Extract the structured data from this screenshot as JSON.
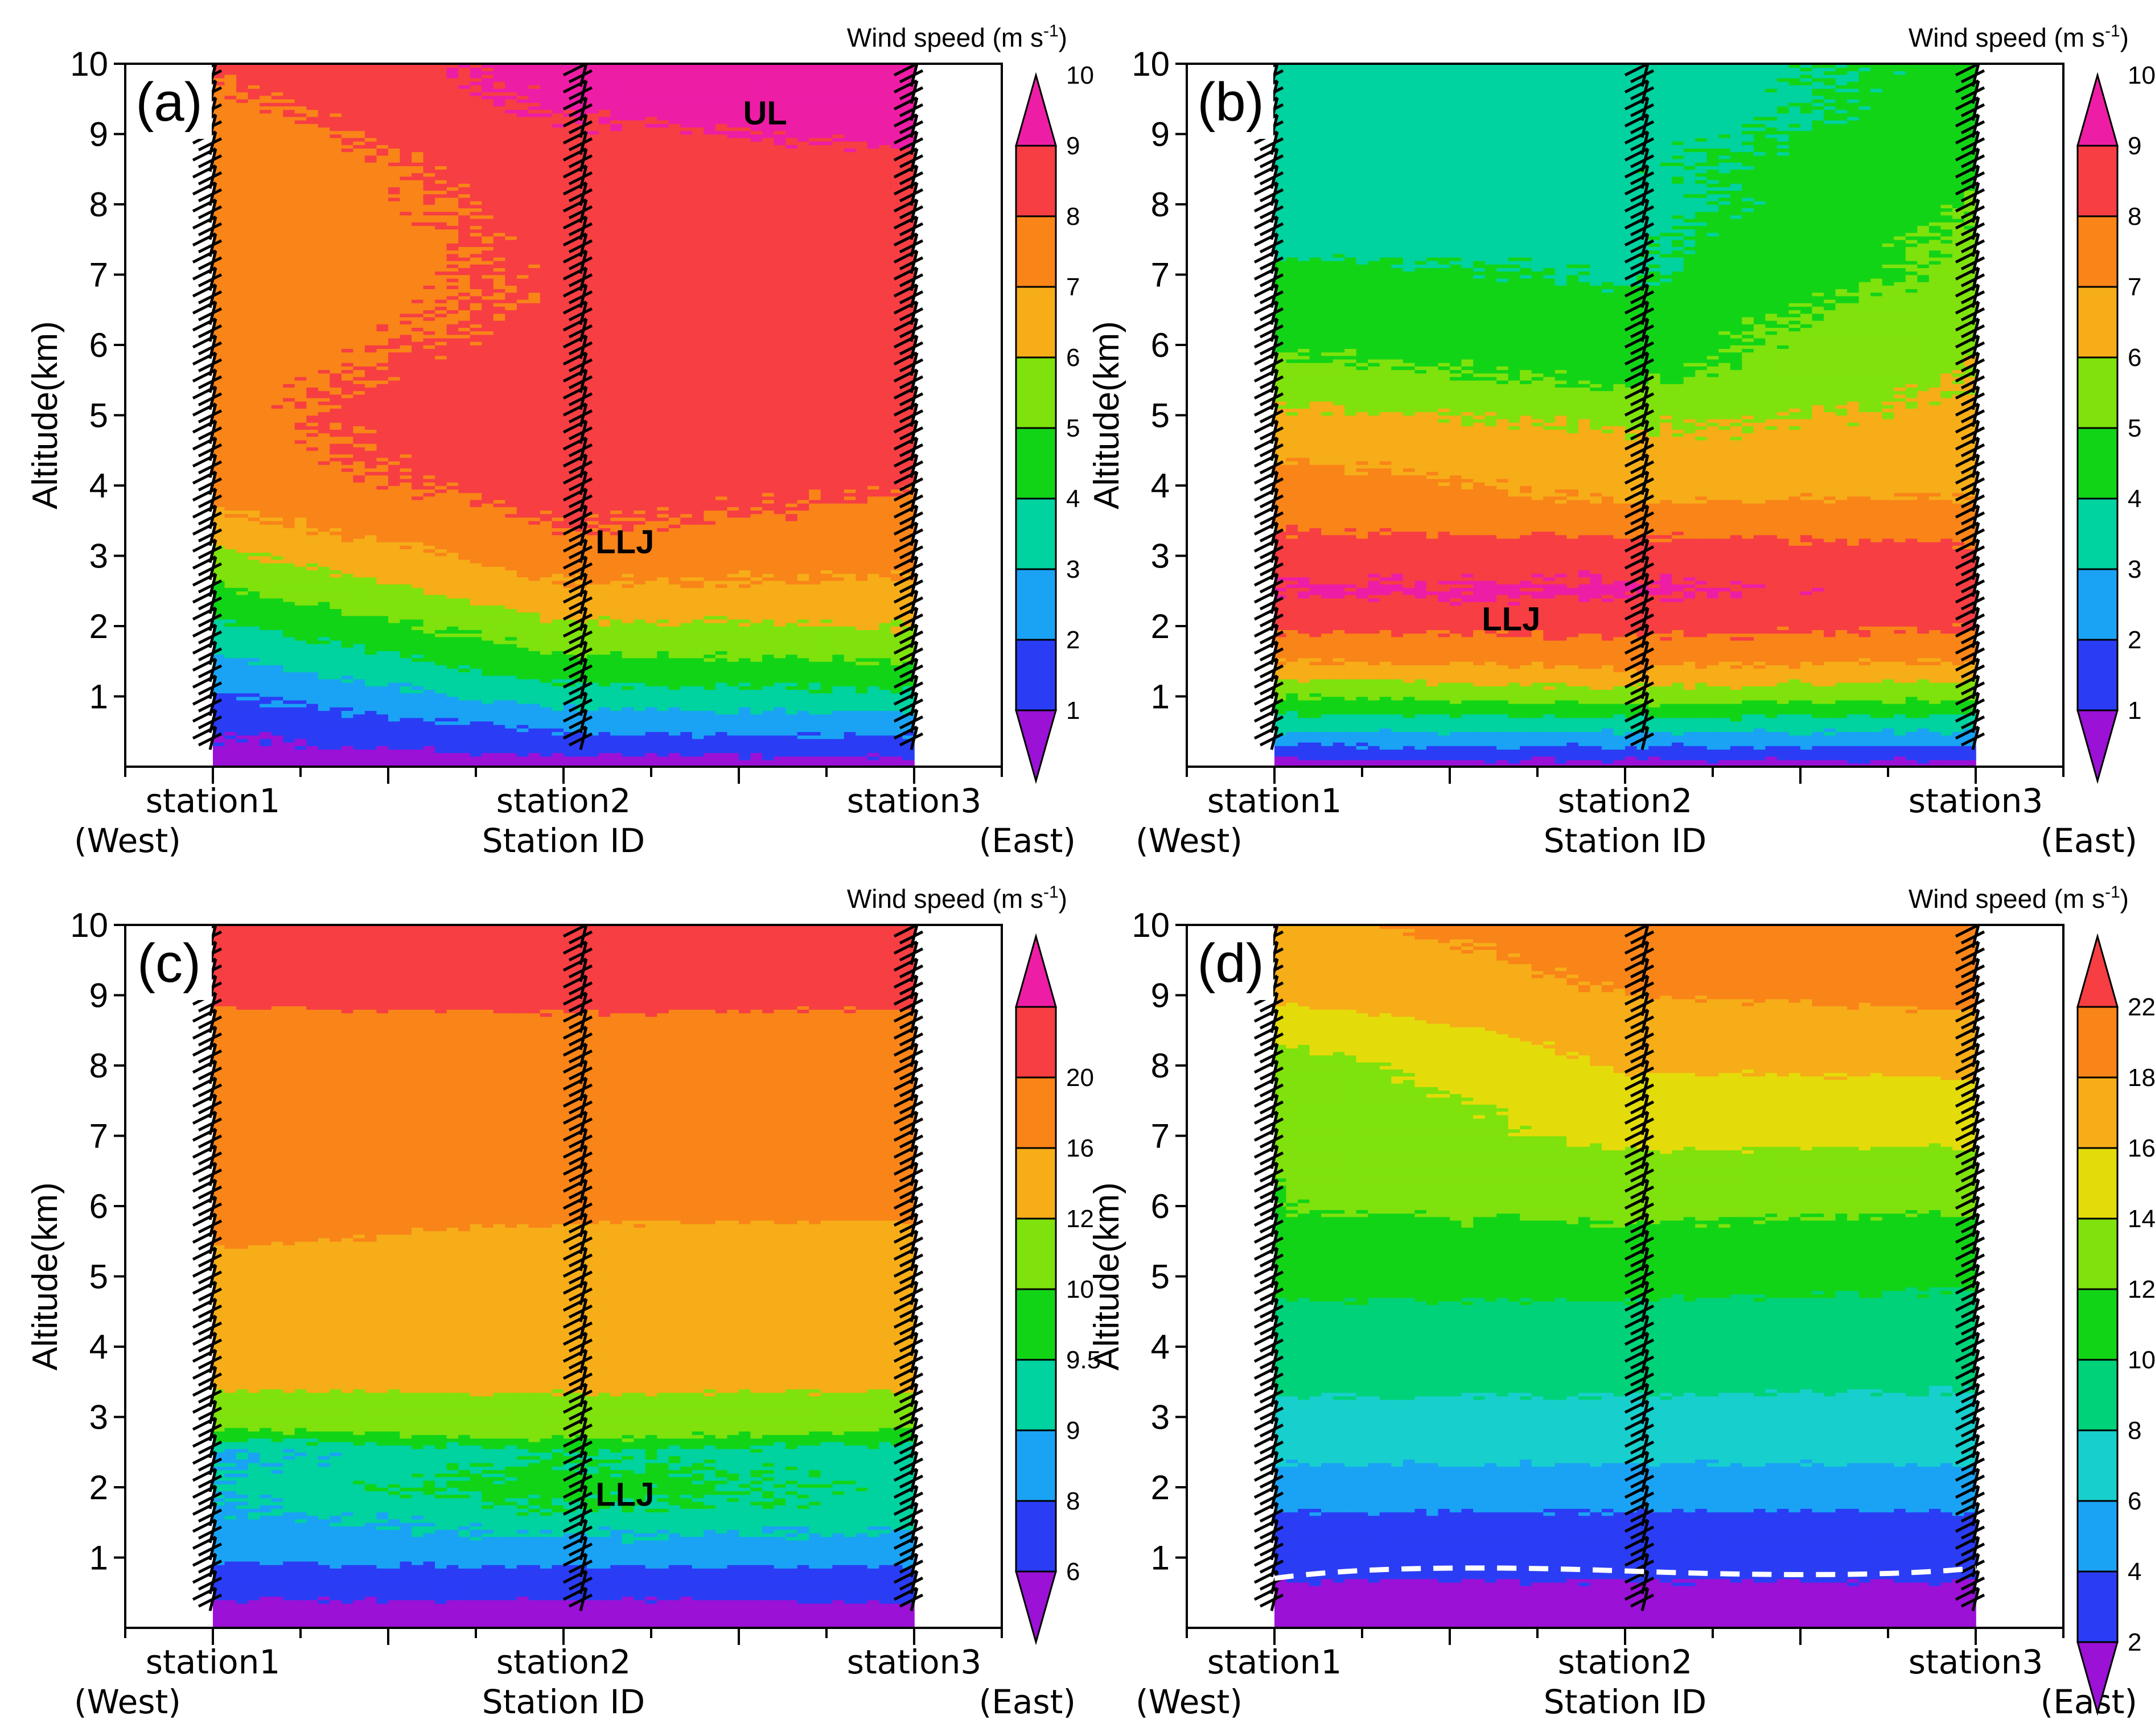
{
  "figure": {
    "y_axis_label": "Altitude(km)",
    "x_axis_label": "Station ID",
    "colorbar_title": "Wind speed (m s",
    "colorbar_title_exp": "-1",
    "colorbar_title_end": ")",
    "west_label": "(West)",
    "east_label": "(East)"
  },
  "chart_data": [
    {
      "type": "heatmap",
      "panel": "(a)",
      "xlabel": "Station ID",
      "ylabel": "Altitude(km)",
      "x_categories": [
        "station1",
        "station2",
        "station3"
      ],
      "y_ticks": [
        1,
        2,
        3,
        4,
        5,
        6,
        7,
        8,
        9,
        10
      ],
      "ylim": [
        0,
        10
      ],
      "colorbar_levels": [
        1,
        2,
        3,
        4,
        5,
        6,
        7,
        8,
        9,
        10
      ],
      "colorbar_labels": [
        "1",
        "2",
        "3",
        "4",
        "5",
        "6",
        "7",
        "8",
        "9",
        "10"
      ],
      "annotations": [
        "UL",
        "LLJ"
      ],
      "annotation_altitudes_km": [
        9.3,
        3.2
      ],
      "profiles": {
        "station1": [
          0.5,
          1,
          1.8,
          2.8,
          3.8,
          4.8,
          5.8,
          6.8,
          7.5,
          7.6,
          7.7,
          7.6,
          7.5,
          7.4,
          7.3,
          7.2,
          7.2,
          7.3,
          7.5,
          7.8,
          8.1
        ],
        "station2": [
          0.5,
          2,
          3.5,
          4.8,
          5.8,
          6.8,
          7.6,
          8.1,
          8.4,
          8.6,
          8.8,
          8.7,
          8.4,
          8.2,
          8.2,
          8.3,
          8.4,
          8.5,
          8.8,
          9.2,
          9.4
        ],
        "station3": [
          0.5,
          2.2,
          3.8,
          5,
          6,
          6.8,
          7.3,
          7.7,
          8.1,
          8.7,
          8.8,
          8.6,
          8.5,
          8.7,
          8.8,
          8.7,
          8.5,
          8.6,
          9.2,
          9.8,
          10.2
        ]
      }
    },
    {
      "type": "heatmap",
      "panel": "(b)",
      "xlabel": "Station ID",
      "ylabel": "Altitude(km)",
      "x_categories": [
        "station1",
        "station2",
        "station3"
      ],
      "y_ticks": [
        1,
        2,
        3,
        4,
        5,
        6,
        7,
        8,
        9,
        10
      ],
      "ylim": [
        0,
        10
      ],
      "colorbar_levels": [
        1,
        2,
        3,
        4,
        5,
        6,
        7,
        8,
        9,
        10
      ],
      "colorbar_labels": [
        "1",
        "2",
        "3",
        "4",
        "5",
        "6",
        "7",
        "8",
        "9",
        "10"
      ],
      "annotations": [
        "LLJ"
      ],
      "annotation_altitudes_km": [
        2.1
      ],
      "profiles": {
        "station1": [
          0.5,
          3,
          5,
          7,
          8.2,
          9.1,
          8.5,
          7.8,
          7.6,
          6.8,
          6.2,
          5.5,
          4.8,
          4.8,
          4.5,
          3.4,
          3.5,
          3.3,
          3.5,
          3.2,
          3.2
        ],
        "station2": [
          0.5,
          3,
          5.5,
          7.3,
          8.3,
          9.2,
          8.6,
          7.5,
          6.6,
          6.2,
          5.8,
          4.8,
          4.6,
          4.5,
          3.8,
          3.8,
          3.6,
          3.8,
          3.7,
          3.4,
          3.6
        ],
        "station3": [
          0.5,
          3,
          5.2,
          7,
          8.1,
          8.6,
          8.3,
          7.5,
          6.8,
          6.5,
          6.2,
          6.1,
          5.8,
          5.5,
          5.3,
          5.2,
          5,
          4.8,
          4.5,
          4.4,
          4.3
        ]
      }
    },
    {
      "type": "heatmap",
      "panel": "(c)",
      "xlabel": "Station ID",
      "ylabel": "Altitude(km)",
      "x_categories": [
        "station1",
        "station2",
        "station3"
      ],
      "y_ticks": [
        1,
        2,
        3,
        4,
        5,
        6,
        7,
        8,
        9,
        10
      ],
      "ylim": [
        0,
        10
      ],
      "colorbar_levels": [
        6,
        8,
        9,
        9.5,
        10,
        12,
        16,
        20
      ],
      "colorbar_labels": [
        "6",
        "8",
        "9",
        "9.5",
        "10",
        "12",
        "16",
        "20"
      ],
      "annotations": [
        "LLJ"
      ],
      "annotation_altitudes_km": [
        1.9
      ],
      "profiles": {
        "station1": [
          4,
          6.5,
          8.2,
          8.8,
          9.1,
          8.9,
          10.5,
          12.5,
          12.8,
          13,
          13.2,
          16.5,
          17,
          17.5,
          17.8,
          18,
          18.5,
          19,
          20.5,
          21.5,
          22
        ],
        "station2": [
          4,
          6.5,
          8.5,
          9.3,
          9.8,
          9.4,
          11,
          12.5,
          13,
          13.5,
          14,
          15,
          17,
          17.5,
          17.8,
          18,
          18.5,
          19,
          21,
          21.5,
          22
        ],
        "station3": [
          4,
          6.6,
          8.4,
          9.2,
          9.3,
          9.2,
          10.5,
          12.5,
          12.8,
          13,
          13.5,
          14.5,
          17,
          17.5,
          17.8,
          18,
          18.2,
          19,
          20.5,
          21,
          21.5
        ]
      }
    },
    {
      "type": "heatmap",
      "panel": "(d)",
      "xlabel": "Station ID",
      "ylabel": "Altitude(km)",
      "x_categories": [
        "station1",
        "station2",
        "station3"
      ],
      "y_ticks": [
        1,
        2,
        3,
        4,
        5,
        6,
        7,
        8,
        9,
        10
      ],
      "ylim": [
        0,
        10
      ],
      "colorbar_levels": [
        2,
        4,
        6,
        8,
        10,
        12,
        14,
        16,
        18,
        22
      ],
      "colorbar_labels": [
        "2",
        "4",
        "6",
        "8",
        "10",
        "12",
        "14",
        "16",
        "18",
        "22"
      ],
      "annotations": [],
      "dashed_line_altitude_km": 0.85,
      "profiles": {
        "station1": [
          1.5,
          1.5,
          3,
          3.5,
          5,
          6.5,
          7.2,
          8.5,
          9,
          9.5,
          11,
          11.5,
          12,
          12.2,
          12.5,
          12.8,
          13,
          14.5,
          16.5,
          17,
          17.5
        ],
        "station2": [
          1.5,
          1.5,
          3,
          3.5,
          5,
          6.5,
          7.2,
          8.5,
          9,
          9.5,
          11,
          11.5,
          12.5,
          13.2,
          14.5,
          15,
          16.2,
          17,
          18,
          18.5,
          19
        ],
        "station3": [
          1.5,
          1.5,
          3,
          3.5,
          5,
          6.5,
          7.2,
          8.2,
          8.8,
          9.2,
          10.5,
          11,
          12.2,
          12.8,
          14.5,
          15.2,
          16.5,
          17.2,
          18.5,
          19,
          19.5
        ]
      }
    }
  ],
  "colors": {
    "palette": [
      "#9b11d6",
      "#2a3df5",
      "#1aa3f5",
      "#00d2a0",
      "#12d417",
      "#7fe20c",
      "#f6ad18",
      "#f98418",
      "#f63e43",
      "#ee1da6"
    ],
    "palette_d": [
      "#9b11d6",
      "#2a3df5",
      "#1aa3f5",
      "#17cfcc",
      "#00d27a",
      "#12d417",
      "#7fe20c",
      "#e4dc0a",
      "#f6ad18",
      "#f98418",
      "#f63e43"
    ]
  }
}
